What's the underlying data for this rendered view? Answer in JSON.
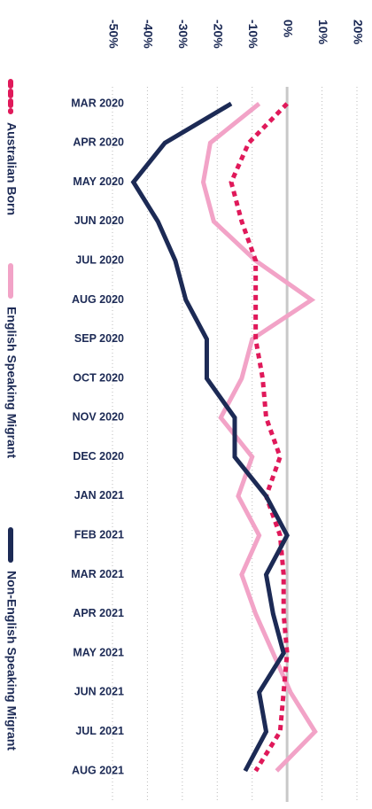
{
  "chart_data": {
    "type": "line",
    "categories": [
      "MAR 2020",
      "APR 2020",
      "MAY 2020",
      "JUN 2020",
      "JUL 2020",
      "AUG 2020",
      "SEP 2020",
      "OCT 2020",
      "NOV 2020",
      "DEC 2020",
      "JAN 2021",
      "FEB 2021",
      "MAR 2021",
      "APR 2021",
      "MAY 2021",
      "JUN 2021",
      "JUL 2021",
      "AUG 2021"
    ],
    "series": [
      {
        "name": "Australian Born",
        "color": "#e0195a",
        "dashed": true,
        "values": [
          0,
          -11,
          -16,
          -13,
          -9,
          -9,
          -9,
          -7,
          -6,
          -2,
          -6,
          -2,
          -1,
          -1,
          0,
          -1,
          -2,
          -9
        ]
      },
      {
        "name": "English Speaking Migrant",
        "color": "#f2a3c7",
        "dashed": false,
        "values": [
          -8,
          -22,
          -24,
          -21,
          -9,
          7,
          -10,
          -13,
          -19,
          -10,
          -14,
          -8,
          -13,
          -9,
          -4,
          1,
          8,
          -3
        ]
      },
      {
        "name": "Non-English Speaking Migrant",
        "color": "#1c2a55",
        "dashed": false,
        "values": [
          -16,
          -35,
          -44,
          -37,
          -32,
          -29,
          -23,
          -23,
          -15,
          -15,
          -6,
          0,
          -6,
          -4,
          -1,
          -8,
          -6,
          -12
        ]
      }
    ],
    "xlim": [
      -50,
      20
    ],
    "xticks": [
      {
        "value": -50,
        "label": "-50%"
      },
      {
        "value": -40,
        "label": "-40%"
      },
      {
        "value": -30,
        "label": "-30%"
      },
      {
        "value": -20,
        "label": "-20%"
      },
      {
        "value": -10,
        "label": "-10%"
      },
      {
        "value": 0,
        "label": "0%"
      },
      {
        "value": 10,
        "label": "10%"
      },
      {
        "value": 20,
        "label": "20%"
      }
    ],
    "grid": true
  }
}
